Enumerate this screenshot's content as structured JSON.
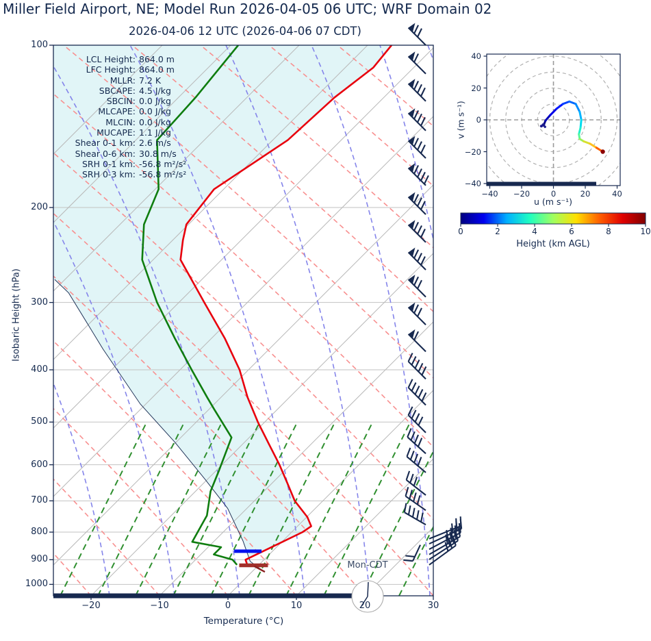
{
  "title": "Miller Field Airport, NE; Model Run 2026-04-05 06 UTC; WRF Domain 02",
  "subtitle": "2026-04-06 12 UTC  (2026-04-06 07 CDT)",
  "stats": [
    {
      "label": "LCL Height:",
      "value": "864.0 m"
    },
    {
      "label": "LFC Height:",
      "value": "864.0 m"
    },
    {
      "label": "MLLR:",
      "value": "7.2 K"
    },
    {
      "label": "SBCAPE:",
      "value": "4.5 J/kg"
    },
    {
      "label": "SBCIN:",
      "value": "0.0 J/kg"
    },
    {
      "label": "MLCAPE:",
      "value": "0.0 J/kg"
    },
    {
      "label": "MLCIN:",
      "value": "0.0 J/kg"
    },
    {
      "label": "MUCAPE:",
      "value": "1.1 J/kg"
    },
    {
      "label": "Shear 0-1 km:",
      "value": "2.6 m/s"
    },
    {
      "label": "Shear 0-6 km:",
      "value": "30.8 m/s"
    },
    {
      "label": "SRH 0-1 km:",
      "value": "-56.8 m²/s²"
    },
    {
      "label": "SRH 0-3 km:",
      "value": "-56.8 m²/s²"
    }
  ],
  "skewt": {
    "ylabel": "Isobaric Height (hPa)",
    "xlabel": "Temperature (°C)",
    "yticks": [
      100,
      200,
      300,
      400,
      500,
      600,
      700,
      800,
      900,
      1000
    ],
    "xticks": [
      -20,
      -10,
      0,
      10,
      20,
      30
    ],
    "annotation": "Mon-CDT"
  },
  "hodograph": {
    "xlabel": "u (m s⁻¹)",
    "ylabel": "v (m s⁻¹)",
    "xticks": [
      -40,
      -20,
      0,
      20,
      40
    ],
    "yticks": [
      40,
      20,
      0,
      -20,
      -40
    ]
  },
  "colorbar": {
    "label": "Height (km AGL)",
    "ticks": [
      0,
      2,
      4,
      6,
      8,
      10
    ]
  },
  "colors": {
    "navy": "#17294f",
    "text": "#14294e",
    "temperature": "#e8000d",
    "dewpoint": "#0f7d0f",
    "parcel": "#23365a",
    "cape_fill": "#e1f5f7",
    "isotherm": "#b9b9b9",
    "grid": "#c2c2c2",
    "dry_adiabat": "#f89090",
    "moist_adiabat": "#8585ea",
    "mixing_ratio": "#2f8f2f",
    "lcl_marker": "#0011ee",
    "sfc_marker": "#a1302a",
    "ring": "#b0b0b0",
    "jet": [
      "#000080",
      "#0000f0",
      "#00b0ff",
      "#20ffc0",
      "#a0ff60",
      "#ffe000",
      "#ff6000",
      "#e00000",
      "#800000"
    ]
  },
  "chart_data": [
    {
      "type": "line",
      "title": "Skew-T log-p sounding",
      "xlabel": "Temperature (°C)",
      "ylabel": "Isobaric Height (hPa)",
      "x_range": [
        -25.5,
        30
      ],
      "y_range": [
        1050,
        100
      ],
      "y_scale": "log",
      "skew_deg": 45,
      "series": [
        {
          "name": "temperature",
          "units": "hPa,degC",
          "points": [
            [
              100,
              -56.5
            ],
            [
              110,
              -55.9
            ],
            [
              125,
              -57.2
            ],
            [
              150,
              -57.8
            ],
            [
              185,
              -61.4
            ],
            [
              215,
              -60.3
            ],
            [
              230,
              -58.5
            ],
            [
              250,
              -56.0
            ],
            [
              300,
              -46.3
            ],
            [
              350,
              -38.0
            ],
            [
              400,
              -31.3
            ],
            [
              450,
              -26.1
            ],
            [
              500,
              -21.0
            ],
            [
              550,
              -16.1
            ],
            [
              600,
              -11.6
            ],
            [
              650,
              -7.7
            ],
            [
              700,
              -4.1
            ],
            [
              750,
              0.1
            ],
            [
              780,
              2.0
            ],
            [
              800,
              1.6
            ],
            [
              850,
              -0.6
            ],
            [
              900,
              -2.7
            ],
            [
              920,
              -1.7
            ]
          ]
        },
        {
          "name": "dewpoint",
          "units": "hPa,degC",
          "points": [
            [
              100,
              -78.9
            ],
            [
              125,
              -77.5
            ],
            [
              150,
              -76.9
            ],
            [
              185,
              -69.5
            ],
            [
              215,
              -66.5
            ],
            [
              250,
              -61.6
            ],
            [
              300,
              -53.2
            ],
            [
              350,
              -45.3
            ],
            [
              400,
              -38.3
            ],
            [
              450,
              -32.0
            ],
            [
              473,
              -29.3
            ],
            [
              534,
              -22.6
            ],
            [
              615,
              -19.6
            ],
            [
              672,
              -17.8
            ],
            [
              745,
              -14.8
            ],
            [
              834,
              -13.1
            ],
            [
              853,
              -8.1
            ],
            [
              880,
              -8.1
            ],
            [
              900,
              -4.6
            ],
            [
              920,
              -3.2
            ]
          ]
        },
        {
          "name": "parcel",
          "units": "hPa,degC",
          "points": [
            [
              272,
              -71.5
            ],
            [
              288,
              -67.5
            ],
            [
              366,
              -54.3
            ],
            [
              463,
              -40.8
            ],
            [
              544,
              -30.3
            ],
            [
              639,
              -20.3
            ],
            [
              723,
              -12.8
            ],
            [
              831,
              -5.8
            ],
            [
              906,
              -1.8
            ],
            [
              942,
              1.3
            ]
          ]
        }
      ],
      "markers": {
        "lcl": {
          "p": 868,
          "t_min": -5.6,
          "t_max": -1.6
        },
        "surface": {
          "p": 922,
          "t_min": -2.8,
          "t_max": 1.4
        },
        "surface_stub": {
          "p1": 925,
          "t1": -0.5,
          "p2": 948,
          "t2": 1.9
        }
      },
      "wind_barbs": [
        {
          "p": 100,
          "rot": -135,
          "pennants": 1,
          "fulls": 2
        },
        {
          "p": 113,
          "rot": -135,
          "pennants": 1,
          "fulls": 1
        },
        {
          "p": 127,
          "rot": -135,
          "pennants": 1,
          "fulls": 3
        },
        {
          "p": 144,
          "rot": -135,
          "pennants": 1,
          "fulls": 3
        },
        {
          "p": 162,
          "rot": -135,
          "pennants": 1,
          "fulls": 3
        },
        {
          "p": 182,
          "rot": -135,
          "pennants": 1,
          "fulls": 4
        },
        {
          "p": 206,
          "rot": -135,
          "pennants": 1,
          "fulls": 3
        },
        {
          "p": 232,
          "rot": -135,
          "pennants": 1,
          "fulls": 3
        },
        {
          "p": 261,
          "rot": -135,
          "pennants": 1,
          "fulls": 3
        },
        {
          "p": 293,
          "rot": -135,
          "pennants": 1,
          "fulls": 2
        },
        {
          "p": 330,
          "rot": -135,
          "pennants": 1,
          "fulls": 2
        },
        {
          "p": 370,
          "rot": -135,
          "pennants": 1,
          "fulls": 1
        },
        {
          "p": 416,
          "rot": -135,
          "pennants": 0,
          "fulls": 5
        },
        {
          "p": 465,
          "rot": -135,
          "pennants": 0,
          "fulls": 5
        },
        {
          "p": 523,
          "rot": -135,
          "pennants": 0,
          "fulls": 4
        },
        {
          "p": 572,
          "rot": -138,
          "pennants": 0,
          "fulls": 4
        },
        {
          "p": 620,
          "rot": -140,
          "pennants": 0,
          "fulls": 4
        },
        {
          "p": 683,
          "rot": -142,
          "pennants": 0,
          "fulls": 3
        },
        {
          "p": 729,
          "rot": -145,
          "pennants": 0,
          "fulls": 4
        },
        {
          "p": 775,
          "rot": -150,
          "pennants": 0,
          "fulls": 5
        },
        {
          "p": 845,
          "x": 614,
          "rot": 115,
          "pennants": 0,
          "fulls": 2,
          "len": 26
        },
        {
          "p": 823,
          "x": 627,
          "rot": -22,
          "pennants": 0,
          "fulls": 2,
          "flip": 1,
          "len": 50
        },
        {
          "p": 841,
          "x": 627,
          "rot": -25,
          "pennants": 0,
          "fulls": 3,
          "flip": 1,
          "len": 52
        },
        {
          "p": 861,
          "x": 627,
          "rot": -28,
          "pennants": 0,
          "fulls": 4,
          "flip": 1,
          "len": 52
        },
        {
          "p": 880,
          "x": 627,
          "rot": -30,
          "pennants": 0,
          "fulls": 4,
          "flip": 1,
          "len": 52
        },
        {
          "p": 899,
          "x": 627,
          "rot": -33,
          "pennants": 0,
          "fulls": 3,
          "flip": 1,
          "len": 50
        },
        {
          "p": 920,
          "x": 627,
          "rot": -36,
          "pennants": 0,
          "fulls": 3,
          "flip": 1,
          "len": 48
        }
      ]
    },
    {
      "type": "line",
      "title": "Hodograph",
      "xlabel": "u (m s⁻¹)",
      "ylabel": "v (m s⁻¹)",
      "x_range": [
        -42,
        42
      ],
      "y_range": [
        -42,
        42
      ],
      "ring_radii": [
        10,
        20,
        30,
        40,
        50
      ],
      "colorbar_label": "Height (km AGL)",
      "colorbar_range": [
        0,
        10
      ],
      "trace": [
        {
          "u": -6.0,
          "v": -3.0,
          "h": 0.0,
          "c": "#000085"
        },
        {
          "u": -5.0,
          "v": -0.5,
          "h": 0.4,
          "c": "#0000b8"
        },
        {
          "u": -2.0,
          "v": 3.0,
          "h": 0.9,
          "c": "#0000e8"
        },
        {
          "u": 2.0,
          "v": 7.0,
          "h": 1.4,
          "c": "#0018ff"
        },
        {
          "u": 6.0,
          "v": 10.0,
          "h": 1.9,
          "c": "#0040ff"
        },
        {
          "u": 10.0,
          "v": 11.5,
          "h": 2.4,
          "c": "#0068ff"
        },
        {
          "u": 14.0,
          "v": 10.0,
          "h": 3.0,
          "c": "#008cff"
        },
        {
          "u": 16.5,
          "v": 5.0,
          "h": 3.6,
          "c": "#00b4ff"
        },
        {
          "u": 17.5,
          "v": 0.0,
          "h": 4.3,
          "c": "#00dcf0"
        },
        {
          "u": 17.0,
          "v": -5.0,
          "h": 5.0,
          "c": "#20f0cc"
        },
        {
          "u": 16.0,
          "v": -9.0,
          "h": 5.6,
          "c": "#58f89c"
        },
        {
          "u": 16.5,
          "v": -12.0,
          "h": 6.3,
          "c": "#9cf05c"
        },
        {
          "u": 19.0,
          "v": -13.5,
          "h": 7.0,
          "c": "#d8e030"
        },
        {
          "u": 23.0,
          "v": -15.0,
          "h": 7.8,
          "c": "#ffc020"
        },
        {
          "u": 27.0,
          "v": -17.5,
          "h": 8.9,
          "c": "#ff6000"
        },
        {
          "u": 31.0,
          "v": -20.0,
          "h": 10.0,
          "c": "#a00000"
        }
      ]
    }
  ]
}
